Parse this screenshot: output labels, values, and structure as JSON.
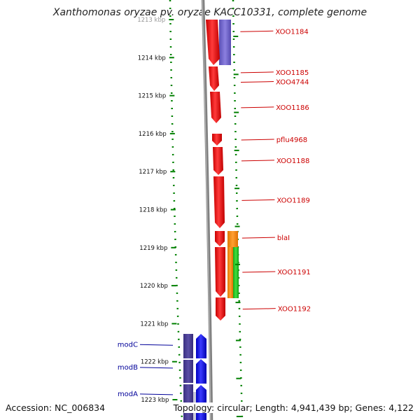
{
  "title": "Xanthomonas oryzae pv. oryzae KACC10331, complete genome",
  "footer": {
    "accession": "Accession: NC_006834",
    "topology": "Topology: circular; Length: 4,941,439 bp; Genes: 4,122"
  },
  "axis": {
    "unit": "kbp",
    "ticks": [
      {
        "pos": 1213,
        "label": "1213 kbp"
      },
      {
        "pos": 1214,
        "label": "1214 kbp"
      },
      {
        "pos": 1215,
        "label": "1215 kbp"
      },
      {
        "pos": 1216,
        "label": "1216 kbp"
      },
      {
        "pos": 1217,
        "label": "1217 kbp"
      },
      {
        "pos": 1218,
        "label": "1218 kbp"
      },
      {
        "pos": 1219,
        "label": "1219 kbp"
      },
      {
        "pos": 1220,
        "label": "1220 kbp"
      },
      {
        "pos": 1221,
        "label": "1221 kbp"
      },
      {
        "pos": 1222,
        "label": "1222 kbp"
      },
      {
        "pos": 1223,
        "label": "1223 kbp"
      }
    ]
  },
  "genes_right": [
    {
      "name": "XOO1184",
      "label_at": 1213.3
    },
    {
      "name": "XOO1185",
      "label_at": 1214.38
    },
    {
      "name": "XOO4744",
      "label_at": 1214.63
    },
    {
      "name": "XOO1186",
      "label_at": 1215.3
    },
    {
      "name": "pflu4968",
      "label_at": 1216.15
    },
    {
      "name": "XOO1188",
      "label_at": 1216.7
    },
    {
      "name": "XOO1189",
      "label_at": 1217.74
    },
    {
      "name": "blaI",
      "label_at": 1218.73
    },
    {
      "name": "XOO1191",
      "label_at": 1219.63
    },
    {
      "name": "XOO1192",
      "label_at": 1220.6
    }
  ],
  "genes_left": [
    {
      "name": "modC",
      "label_at": 1221.55
    },
    {
      "name": "modB",
      "label_at": 1222.15
    },
    {
      "name": "modA",
      "label_at": 1222.85
    }
  ],
  "colors": {
    "forward_gene": "#ff0000",
    "reverse_gene": "#0000ff",
    "cds_forward": "#7b6fd0",
    "cds_reverse": "#4a3e93",
    "orange_feature": "#ff8c00",
    "green_feature": "#22cc22",
    "backbone": "#808080",
    "tick_green": "#008000",
    "label_right": "#cc0000",
    "label_left": "#000099"
  }
}
